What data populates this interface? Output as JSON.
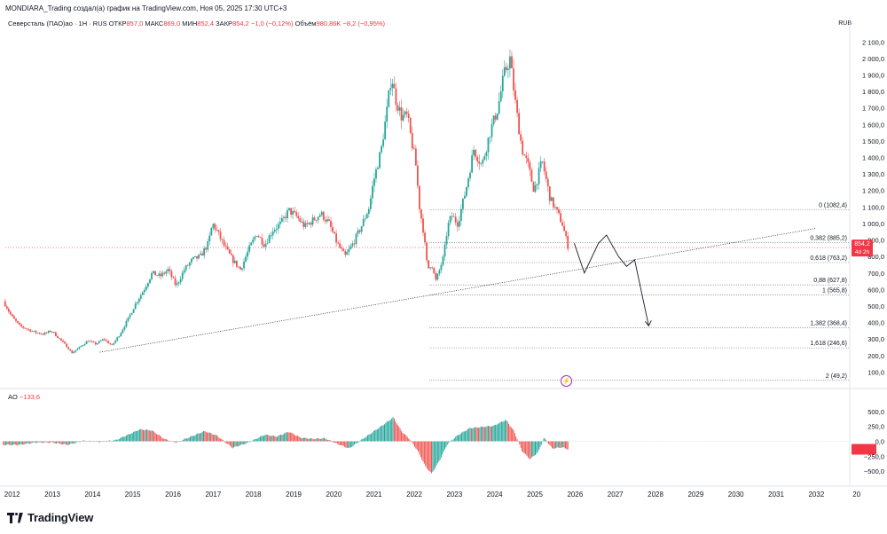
{
  "header": {
    "text": "MONDIARA_Trading создал(а) график на TradingView.com, Ноя 05, 2025 17:30 UTC+3"
  },
  "legend": {
    "symbol": "Северсталь (ПАО)ао · 1Н · RUS",
    "open_label": "ОТКР",
    "open": "857,0",
    "high_label": "МАКС",
    "high": "869,0",
    "low_label": "МИН",
    "low": "852,4",
    "close_label": "ЗАКР",
    "close": "854,2",
    "change": "−1,0 (−0,12%)",
    "volume_label": "Объём",
    "volume": "980,86K",
    "volume_change": "−8,2 (−0,95%)"
  },
  "ao_legend": {
    "name": "AO",
    "value": "−133,6"
  },
  "currency": "RUB",
  "logo": {
    "text": "TradingView"
  },
  "colors": {
    "up": "#26a69a",
    "down": "#ef5350",
    "line": "#131722",
    "grid": "#f0f3fa",
    "price_label": "#f23645"
  },
  "chart_data": [
    {
      "type": "candlestick",
      "title": "",
      "x_ticks": [
        "2012",
        "2013",
        "2014",
        "2015",
        "2016",
        "2017",
        "2018",
        "2019",
        "2020",
        "2021",
        "2022",
        "2023",
        "2024",
        "2025",
        "2026",
        "2027",
        "2028",
        "2029",
        "2030",
        "2031",
        "2032",
        "20"
      ],
      "y_ticks": [
        "2 100,0",
        "2 000,0",
        "1 900,0",
        "1 800,0",
        "1 700,0",
        "1 600,0",
        "1 500,0",
        "1 400,0",
        "1 300,0",
        "1 200,0",
        "1 100,0",
        "1 000,0",
        "900,0",
        "800,0",
        "700,0",
        "600,0",
        "500,0",
        "400,0",
        "300,0",
        "200,0",
        "100,0"
      ],
      "y_ticks_values": [
        2100,
        2000,
        1900,
        1800,
        1700,
        1600,
        1500,
        1400,
        1300,
        1200,
        1100,
        1000,
        900,
        800,
        700,
        600,
        500,
        400,
        300,
        200,
        100
      ],
      "ylim": [
        0,
        2150
      ],
      "last_price": "854,2",
      "countdown": "4d 2h",
      "price_path": [
        [
          2011.8,
          530
        ],
        [
          2012.0,
          440
        ],
        [
          2012.2,
          380
        ],
        [
          2012.4,
          360
        ],
        [
          2012.6,
          340
        ],
        [
          2012.8,
          330
        ],
        [
          2013.0,
          350
        ],
        [
          2013.2,
          300
        ],
        [
          2013.4,
          250
        ],
        [
          2013.5,
          215
        ],
        [
          2013.7,
          250
        ],
        [
          2013.9,
          290
        ],
        [
          2014.1,
          270
        ],
        [
          2014.3,
          300
        ],
        [
          2014.5,
          260
        ],
        [
          2014.7,
          330
        ],
        [
          2014.9,
          420
        ],
        [
          2015.1,
          520
        ],
        [
          2015.3,
          600
        ],
        [
          2015.5,
          700
        ],
        [
          2015.7,
          680
        ],
        [
          2015.9,
          720
        ],
        [
          2016.1,
          620
        ],
        [
          2016.3,
          720
        ],
        [
          2016.5,
          780
        ],
        [
          2016.7,
          800
        ],
        [
          2016.9,
          880
        ],
        [
          2017.0,
          1000
        ],
        [
          2017.1,
          960
        ],
        [
          2017.3,
          860
        ],
        [
          2017.5,
          780
        ],
        [
          2017.7,
          720
        ],
        [
          2017.9,
          840
        ],
        [
          2018.1,
          940
        ],
        [
          2018.3,
          870
        ],
        [
          2018.5,
          960
        ],
        [
          2018.7,
          1000
        ],
        [
          2018.9,
          1080
        ],
        [
          2019.1,
          1040
        ],
        [
          2019.3,
          980
        ],
        [
          2019.5,
          1020
        ],
        [
          2019.7,
          1060
        ],
        [
          2019.9,
          1000
        ],
        [
          2020.1,
          880
        ],
        [
          2020.3,
          800
        ],
        [
          2020.5,
          880
        ],
        [
          2020.7,
          980
        ],
        [
          2020.9,
          1100
        ],
        [
          2021.0,
          1250
        ],
        [
          2021.2,
          1450
        ],
        [
          2021.35,
          1700
        ],
        [
          2021.45,
          1900
        ],
        [
          2021.55,
          1760
        ],
        [
          2021.7,
          1650
        ],
        [
          2021.85,
          1650
        ],
        [
          2021.95,
          1500
        ],
        [
          2022.05,
          1380
        ],
        [
          2022.15,
          1100
        ],
        [
          2022.25,
          950
        ],
        [
          2022.35,
          720
        ],
        [
          2022.45,
          760
        ],
        [
          2022.55,
          650
        ],
        [
          2022.65,
          720
        ],
        [
          2022.75,
          800
        ],
        [
          2022.85,
          980
        ],
        [
          2022.95,
          1050
        ],
        [
          2023.1,
          1000
        ],
        [
          2023.3,
          1200
        ],
        [
          2023.5,
          1450
        ],
        [
          2023.7,
          1350
        ],
        [
          2023.9,
          1550
        ],
        [
          2024.1,
          1700
        ],
        [
          2024.25,
          1900
        ],
        [
          2024.4,
          2000
        ],
        [
          2024.55,
          1700
        ],
        [
          2024.7,
          1450
        ],
        [
          2024.85,
          1350
        ],
        [
          2025.0,
          1200
        ],
        [
          2025.2,
          1380
        ],
        [
          2025.4,
          1150
        ],
        [
          2025.55,
          1080
        ],
        [
          2025.7,
          1000
        ],
        [
          2025.85,
          854
        ]
      ]
    },
    {
      "type": "bar",
      "title": "",
      "name": "AO",
      "y_ticks": [
        "500,0",
        "250,0",
        "0,0",
        "−250,0",
        "−500,0"
      ],
      "y_ticks_values": [
        500,
        250,
        0,
        -250,
        -500
      ],
      "ylim": [
        -630,
        630
      ],
      "ao_path": [
        [
          2011.8,
          -60
        ],
        [
          2012.2,
          -60
        ],
        [
          2012.6,
          -20
        ],
        [
          2013.0,
          -20
        ],
        [
          2013.4,
          -60
        ],
        [
          2013.8,
          10
        ],
        [
          2014.2,
          -10
        ],
        [
          2014.6,
          20
        ],
        [
          2014.9,
          110
        ],
        [
          2015.2,
          200
        ],
        [
          2015.5,
          180
        ],
        [
          2015.8,
          40
        ],
        [
          2016.1,
          -20
        ],
        [
          2016.4,
          60
        ],
        [
          2016.8,
          170
        ],
        [
          2017.1,
          100
        ],
        [
          2017.5,
          -110
        ],
        [
          2017.9,
          -20
        ],
        [
          2018.3,
          110
        ],
        [
          2018.6,
          80
        ],
        [
          2018.9,
          160
        ],
        [
          2019.2,
          60
        ],
        [
          2019.5,
          40
        ],
        [
          2019.8,
          50
        ],
        [
          2020.1,
          -40
        ],
        [
          2020.4,
          -120
        ],
        [
          2020.7,
          20
        ],
        [
          2021.0,
          160
        ],
        [
          2021.3,
          300
        ],
        [
          2021.5,
          400
        ],
        [
          2021.7,
          170
        ],
        [
          2021.9,
          40
        ],
        [
          2022.1,
          -150
        ],
        [
          2022.3,
          -420
        ],
        [
          2022.45,
          -540
        ],
        [
          2022.65,
          -320
        ],
        [
          2022.85,
          -40
        ],
        [
          2023.1,
          100
        ],
        [
          2023.4,
          220
        ],
        [
          2023.7,
          240
        ],
        [
          2024.0,
          260
        ],
        [
          2024.3,
          360
        ],
        [
          2024.5,
          170
        ],
        [
          2024.7,
          -160
        ],
        [
          2024.9,
          -300
        ],
        [
          2025.1,
          -180
        ],
        [
          2025.25,
          60
        ],
        [
          2025.45,
          -120
        ],
        [
          2025.7,
          -100
        ],
        [
          2025.85,
          -134
        ]
      ]
    }
  ],
  "fibonacci": [
    {
      "label": "0 (1082,4)",
      "value": 1082.4
    },
    {
      "label": "0,382 (885,2)",
      "value": 885.2
    },
    {
      "label": "0,618 (763,2)",
      "value": 763.2
    },
    {
      "label": "0,88 (627,8)",
      "value": 627.8
    },
    {
      "label": "1 (565,8)",
      "value": 565.8
    },
    {
      "label": "1,382 (368,4)",
      "value": 368.4
    },
    {
      "label": "1,618 (246,6)",
      "value": 246.6
    },
    {
      "label": "2 (49,2)",
      "value": 49.2
    }
  ],
  "trendline": {
    "from": [
      2014.2,
      220
    ],
    "to": [
      2032.0,
      970
    ]
  },
  "projection_path": [
    [
      2026.0,
      880
    ],
    [
      2026.25,
      700
    ],
    [
      2026.6,
      880
    ],
    [
      2026.8,
      930
    ],
    [
      2027.1,
      800
    ],
    [
      2027.3,
      740
    ],
    [
      2027.5,
      780
    ],
    [
      2027.85,
      380
    ]
  ]
}
